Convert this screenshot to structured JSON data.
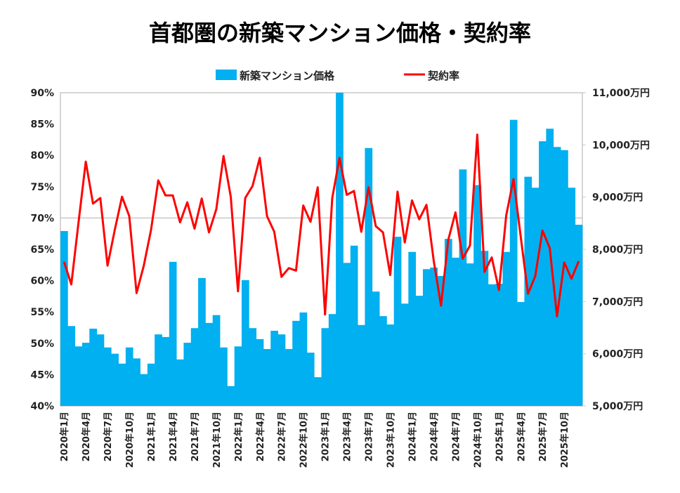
{
  "chart_data": {
    "type": "bar+line",
    "title": "首都圏の新築マンション価格・契約率",
    "legend_position": "top",
    "grid": "single horizontal line at 70%",
    "colors": {
      "price": "#00b0f0",
      "rate": "#ff0000"
    },
    "series": [
      {
        "name": "新築マンション価格",
        "type": "bar",
        "axis": "right",
        "unit": "万円",
        "values": [
          8350,
          6530,
          6140,
          6210,
          6480,
          6370,
          6120,
          6000,
          5810,
          6120,
          5910,
          5610,
          5810,
          6370,
          6320,
          7760,
          5890,
          6210,
          6490,
          7450,
          6590,
          6740,
          6120,
          5380,
          6140,
          7410,
          6490,
          6280,
          6090,
          6440,
          6370,
          6090,
          6630,
          6790,
          6020,
          5550,
          6490,
          6760,
          11000,
          7740,
          8070,
          6550,
          9940,
          7190,
          6720,
          6560,
          8240,
          6960,
          7950,
          7110,
          7620,
          7650,
          7490,
          8200,
          7840,
          9530,
          7730,
          9230,
          7970,
          7330,
          7340,
          7950,
          10480,
          6990,
          9390,
          9180,
          10070,
          10310,
          9960,
          9900,
          9180,
          8470
        ]
      },
      {
        "name": "契約率",
        "type": "line",
        "axis": "left",
        "unit": "%",
        "values": [
          63.0,
          59.4,
          69.3,
          79.0,
          72.3,
          73.2,
          62.4,
          68.1,
          73.4,
          70.3,
          58.0,
          62.4,
          68.1,
          76.0,
          73.6,
          73.6,
          69.3,
          72.5,
          68.3,
          73.1,
          67.7,
          71.4,
          79.9,
          73.4,
          58.3,
          73.2,
          75.1,
          79.6,
          70.3,
          67.8,
          60.6,
          62.0,
          61.6,
          72.0,
          69.4,
          74.9,
          54.6,
          73.2,
          79.6,
          73.7,
          74.3,
          67.8,
          74.9,
          68.7,
          67.7,
          60.9,
          74.2,
          66.1,
          72.8,
          69.8,
          72.1,
          63.1,
          56.0,
          66.5,
          70.9,
          63.5,
          65.6,
          83.3,
          61.4,
          63.7,
          58.5,
          70.4,
          76.2,
          67.0,
          57.9,
          60.7,
          68.0,
          65.2,
          54.3,
          62.9,
          60.3,
          63.1
        ]
      }
    ],
    "x_range": [
      "2020年1月",
      "2025年12月"
    ],
    "x_tick_labels": [
      "2020年1月",
      "2020年4月",
      "2020年7月",
      "2020年10月",
      "2021年1月",
      "2021年4月",
      "2021年7月",
      "2021年10月",
      "2022年1月",
      "2022年4月",
      "2022年7月",
      "2022年10月",
      "2023年1月",
      "2023年4月",
      "2023年7月",
      "2023年10月",
      "2024年1月",
      "2024年4月",
      "2024年7月",
      "2024年10月",
      "2025年1月",
      "2025年4月",
      "2025年7月",
      "2025年10月"
    ],
    "y_left": {
      "ylim": [
        40,
        90
      ],
      "tick_labels": [
        "90%",
        "85%",
        "80%",
        "75%",
        "70%",
        "65%",
        "60%",
        "55%",
        "50%",
        "45%",
        "40%"
      ]
    },
    "y_right": {
      "ylim": [
        5000,
        11000
      ],
      "tick_labels": [
        "11,000万円",
        "10,000万円",
        "9,000万円",
        "8,000万円",
        "7,000万円",
        "6,000万円",
        "5,000万円"
      ]
    }
  }
}
